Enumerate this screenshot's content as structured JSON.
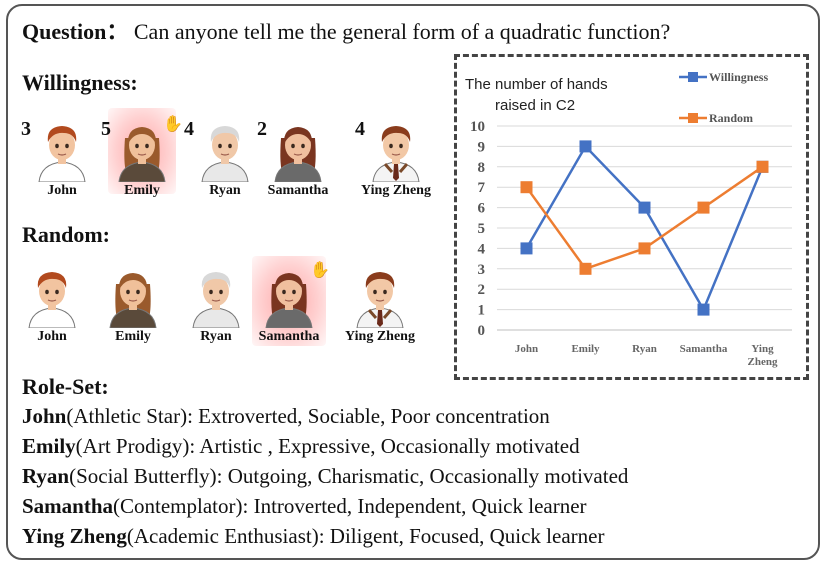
{
  "question": {
    "label": "Question",
    "sep": "：",
    "text": "Can anyone tell me the general form of a quadratic function?"
  },
  "willingness": {
    "title": "Willingness:",
    "agents": [
      {
        "name": "John",
        "count": "3",
        "raised": false
      },
      {
        "name": "Emily",
        "count": "5",
        "raised": true
      },
      {
        "name": "Ryan",
        "count": "4",
        "raised": false
      },
      {
        "name": "Samantha",
        "count": "2",
        "raised": false
      },
      {
        "name": "Ying Zheng",
        "count": "4",
        "raised": false
      }
    ]
  },
  "random": {
    "title": "Random:",
    "agents": [
      {
        "name": "John",
        "raised": false
      },
      {
        "name": "Emily",
        "raised": false
      },
      {
        "name": "Ryan",
        "raised": false
      },
      {
        "name": "Samantha",
        "raised": true
      },
      {
        "name": "Ying Zheng",
        "raised": false
      }
    ]
  },
  "roleset": {
    "title": "Role-Set:",
    "roles": [
      {
        "name": "John",
        "desc": "(Athletic Star): Extroverted, Sociable, Poor concentration"
      },
      {
        "name": "Emily",
        "desc": "(Art Prodigy): Artistic , Expressive, Occasionally motivated"
      },
      {
        "name": "Ryan",
        "desc": "(Social Butterfly): Outgoing, Charismatic, Occasionally motivated"
      },
      {
        "name": "Samantha",
        "desc": "(Contemplator): Introverted, Independent, Quick learner"
      },
      {
        "name": "Ying Zheng",
        "desc": "(Academic Enthusiast): Diligent, Focused, Quick learner"
      }
    ]
  },
  "chart_data": {
    "type": "line",
    "title": "The number of hands raised in C2",
    "categories": [
      "John",
      "Emily",
      "Ryan",
      "Samantha",
      "Ying Zheng"
    ],
    "series": [
      {
        "name": "Willingness",
        "values": [
          4,
          9,
          6,
          1,
          8
        ],
        "color": "#4472c4"
      },
      {
        "name": "Random",
        "values": [
          7,
          3,
          4,
          6,
          8
        ],
        "color": "#ed7d31"
      }
    ],
    "ylim": [
      0,
      10
    ],
    "yticks": [
      "0",
      "1",
      "2",
      "3",
      "4",
      "5",
      "6",
      "7",
      "8",
      "9",
      "10"
    ],
    "grid": true,
    "legend": "top-right"
  },
  "colors": {
    "frame": "#555555",
    "glow": "#ff9a9a"
  }
}
